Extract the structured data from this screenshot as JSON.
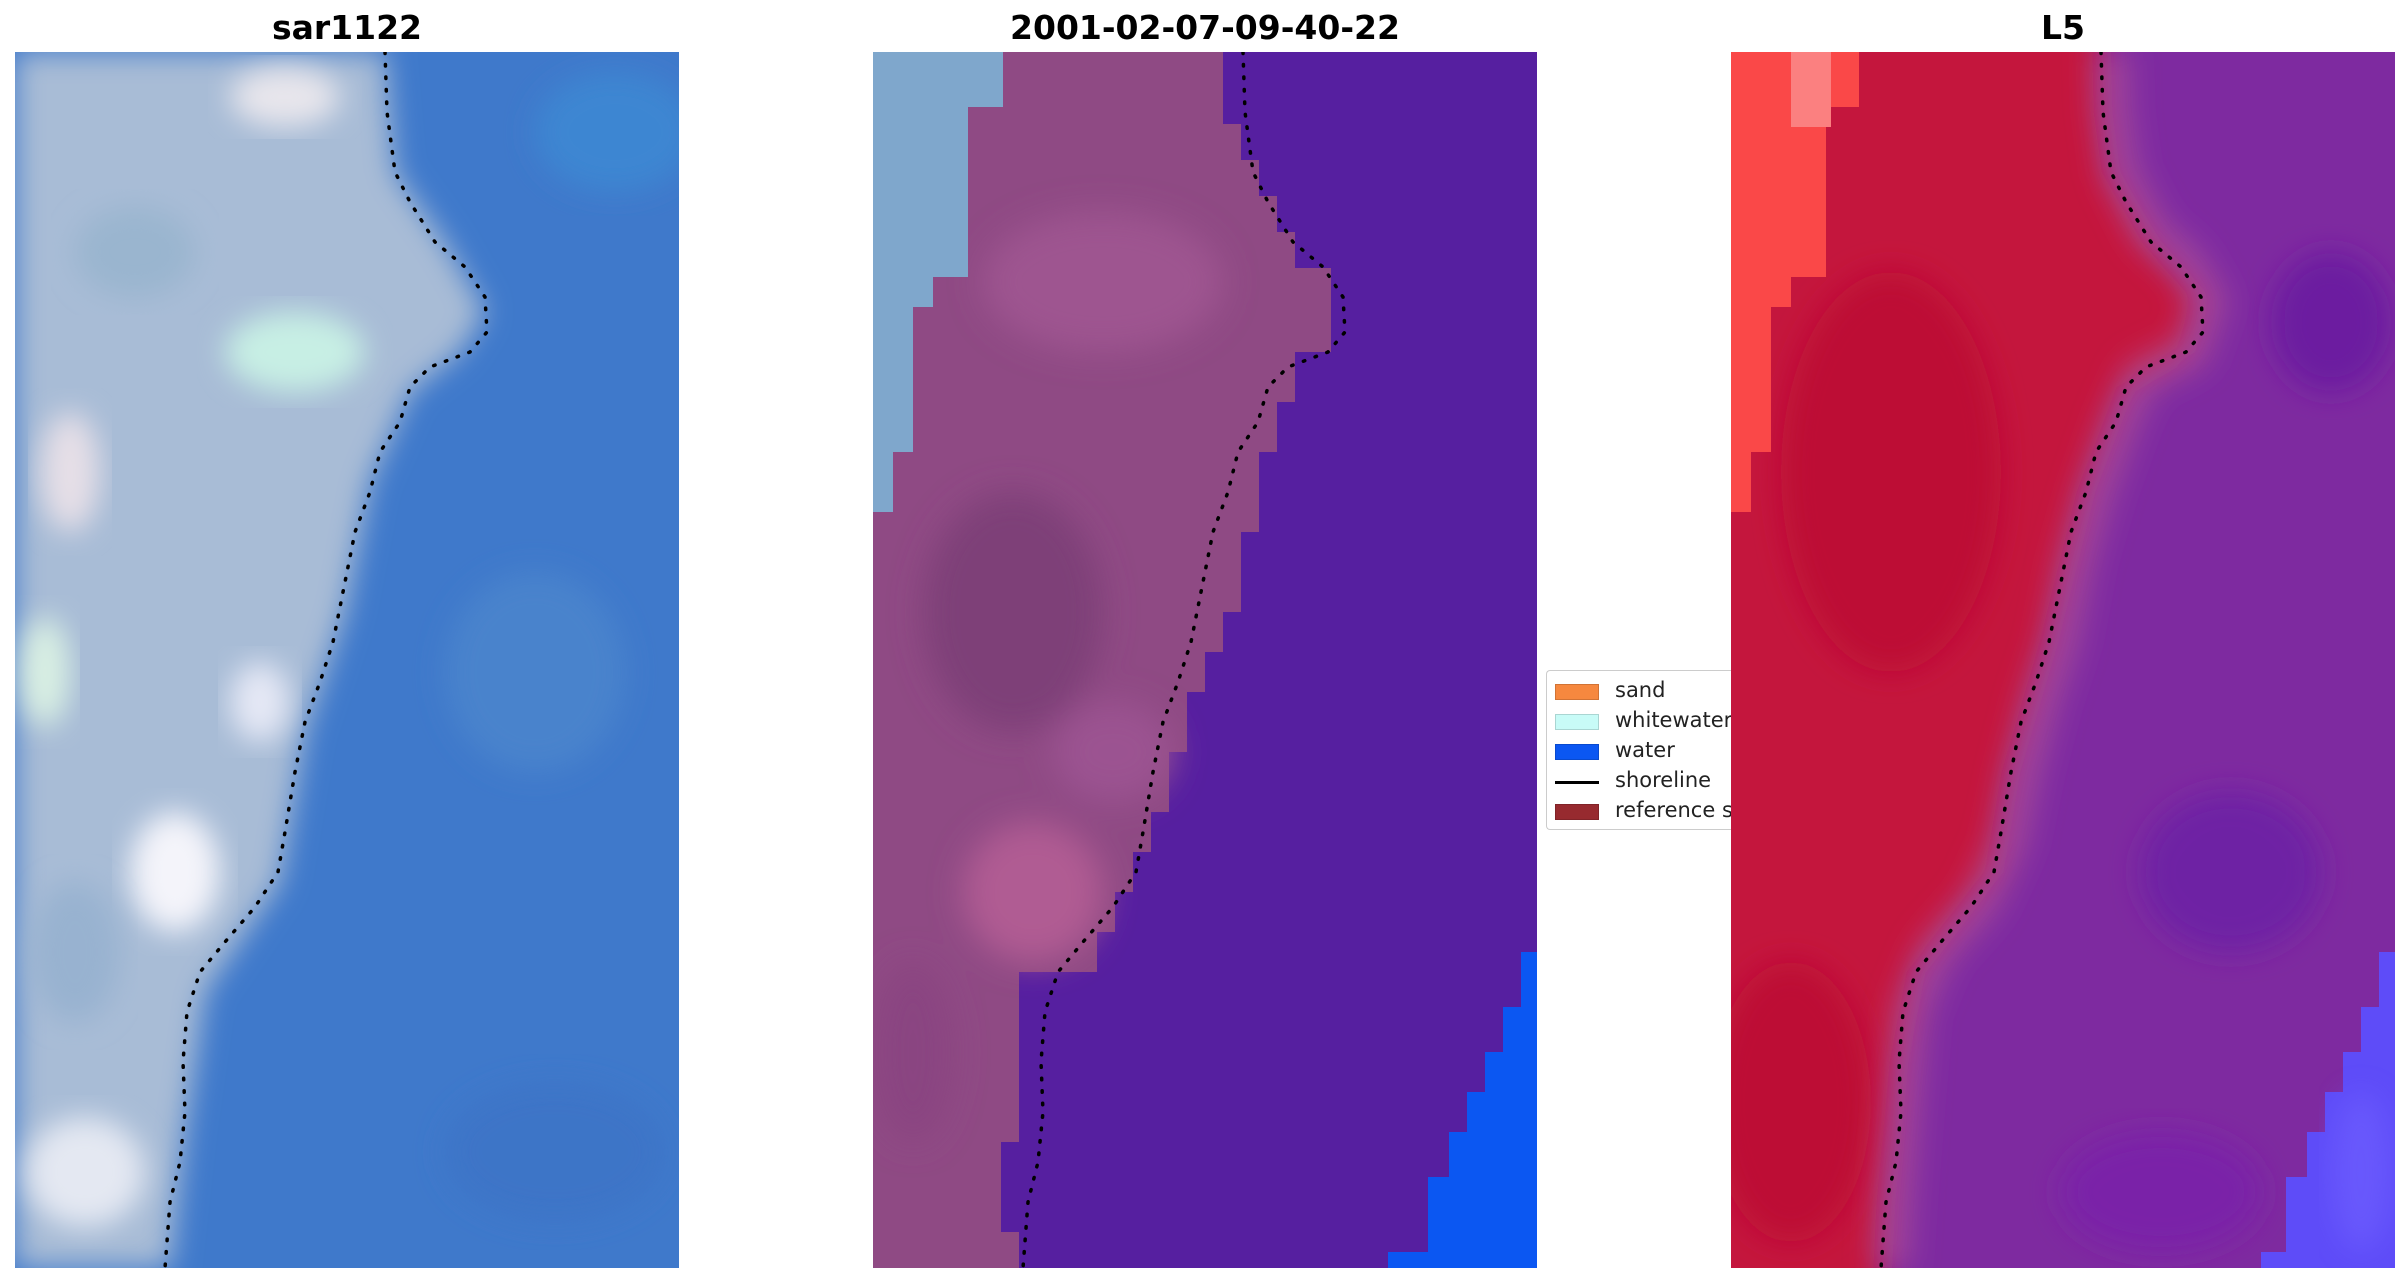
{
  "panels": [
    {
      "title": "sar1122"
    },
    {
      "title": "2001-02-07-09-40-22"
    },
    {
      "title": "L5"
    }
  ],
  "legend": {
    "items": [
      {
        "label": "sand",
        "kind": "patch",
        "color": "#f6883f"
      },
      {
        "label": "whitewater",
        "kind": "patch",
        "color": "#c8fbf7"
      },
      {
        "label": "water",
        "kind": "patch",
        "color": "#0b57f2"
      },
      {
        "label": "shoreline",
        "kind": "line",
        "color": "#000000"
      },
      {
        "label": "reference s",
        "kind": "patch",
        "color": "#972a2f"
      }
    ]
  },
  "colors": {
    "rgb_water": "#3f79cb",
    "rgb_land": "#a7bcd6",
    "class_water": "#561fa0",
    "class_land": "#8f4a84",
    "class_whitewater": "#7fa7cc",
    "class_water_bright": "#0b57f2",
    "index_land": "#c4163c",
    "index_water": "#7e2aa0",
    "index_light": "#fa4848",
    "shoreline_dots": "#000000"
  }
}
